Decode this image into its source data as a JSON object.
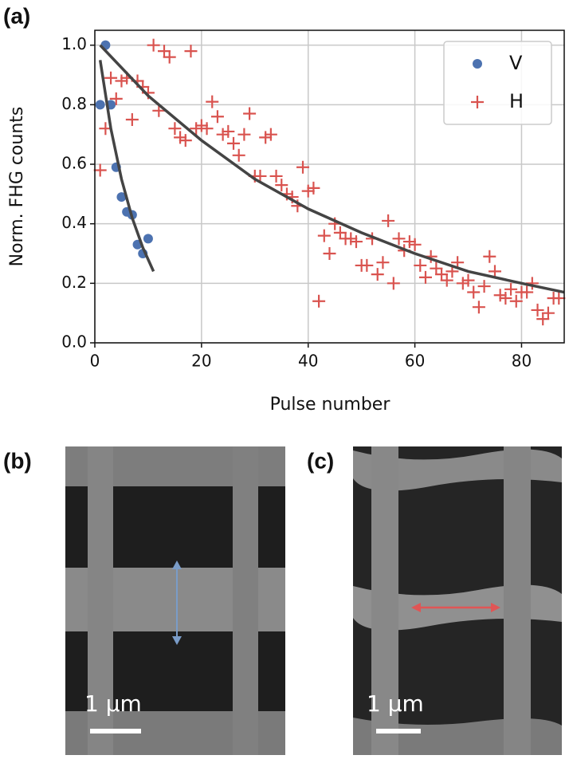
{
  "chart_data": {
    "type": "scatter",
    "panel_label": "(a)",
    "x_label": "Pulse number",
    "y_label": "Norm. FHG counts",
    "xlim": [
      0,
      88
    ],
    "ylim": [
      0,
      1.05
    ],
    "xticks": [
      0,
      20,
      40,
      60,
      80
    ],
    "yticks": [
      {
        "value": 0,
        "label": "0.0"
      },
      0.2,
      0.4,
      0.6,
      0.8,
      {
        "value": 1,
        "label": "1.0"
      }
    ],
    "grid": true,
    "legend": "upper right",
    "series": [
      {
        "name": "V",
        "color": "#4c72b0",
        "marker": "circle",
        "x": [
          1,
          2,
          3,
          4,
          5,
          6,
          7,
          8,
          9,
          10
        ],
        "values": [
          0.8,
          1.0,
          0.8,
          0.59,
          0.49,
          0.44,
          0.43,
          0.33,
          0.3,
          0.35
        ]
      },
      {
        "name": "H",
        "color": "#d9534f",
        "marker": "plus",
        "x": [
          1,
          2,
          3,
          4,
          5,
          6,
          7,
          8,
          9,
          10,
          11,
          12,
          13,
          14,
          15,
          16,
          17,
          18,
          19,
          20,
          21,
          22,
          23,
          24,
          25,
          26,
          27,
          28,
          29,
          30,
          31,
          32,
          33,
          34,
          35,
          36,
          37,
          38,
          39,
          40,
          41,
          42,
          43,
          44,
          45,
          46,
          47,
          48,
          49,
          50,
          51,
          52,
          53,
          54,
          55,
          56,
          57,
          58,
          59,
          60,
          61,
          62,
          63,
          64,
          65,
          66,
          67,
          68,
          69,
          70,
          71,
          72,
          73,
          74,
          75,
          76,
          77,
          78,
          79,
          80,
          81,
          82,
          83,
          84,
          85,
          86,
          87
        ],
        "values": [
          0.58,
          0.72,
          0.89,
          0.82,
          0.88,
          0.89,
          0.75,
          0.88,
          0.86,
          0.84,
          1.0,
          0.78,
          0.98,
          0.96,
          0.72,
          0.69,
          0.68,
          0.98,
          0.72,
          0.73,
          0.72,
          0.81,
          0.76,
          0.7,
          0.71,
          0.67,
          0.63,
          0.7,
          0.77,
          0.56,
          0.56,
          0.69,
          0.7,
          0.56,
          0.53,
          0.5,
          0.49,
          0.46,
          0.59,
          0.51,
          0.52,
          0.14,
          0.36,
          0.3,
          0.4,
          0.37,
          0.35,
          0.35,
          0.34,
          0.26,
          0.26,
          0.35,
          0.23,
          0.27,
          0.41,
          0.2,
          0.35,
          0.31,
          0.34,
          0.33,
          0.26,
          0.22,
          0.29,
          0.25,
          0.23,
          0.21,
          0.24,
          0.27,
          0.2,
          0.21,
          0.17,
          0.12,
          0.19,
          0.29,
          0.24,
          0.16,
          0.15,
          0.18,
          0.14,
          0.17,
          0.17,
          0.2,
          0.11,
          0.08,
          0.1,
          0.15,
          0.15
        ]
      }
    ],
    "fits": [
      {
        "color": "#444444",
        "x": [
          1,
          3,
          5,
          7,
          9,
          11
        ],
        "values": [
          0.95,
          0.72,
          0.55,
          0.42,
          0.32,
          0.24
        ]
      },
      {
        "color": "#444444",
        "x": [
          1,
          10,
          20,
          30,
          40,
          50,
          60,
          70,
          80,
          88
        ],
        "values": [
          1.0,
          0.83,
          0.68,
          0.55,
          0.45,
          0.37,
          0.3,
          0.24,
          0.2,
          0.17
        ]
      }
    ]
  },
  "images": [
    {
      "panel_label": "(b)",
      "scale_label": "1 µm"
    },
    {
      "panel_label": "(c)",
      "scale_label": "1 µm"
    }
  ]
}
